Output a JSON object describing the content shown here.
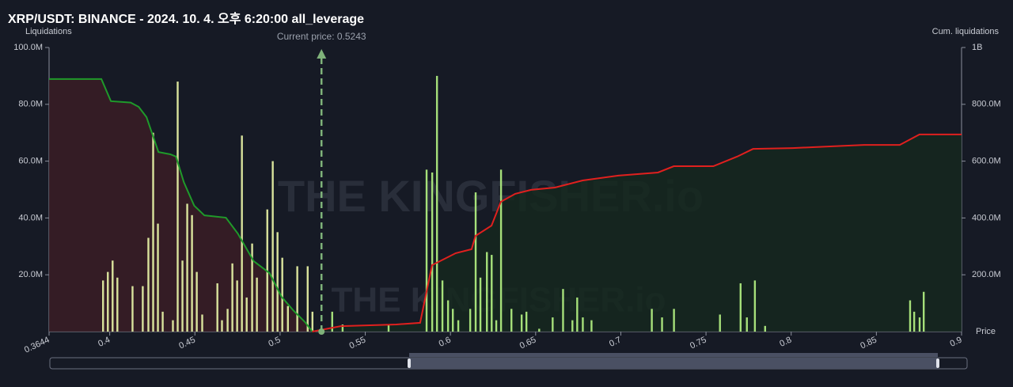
{
  "chart_data": {
    "type": "bar",
    "title": "XRP/USDT: BINANCE - 2024. 10. 4. 오후 6:20:00 all_leverage",
    "y_label": "Liquidations",
    "y2_label": "Cum. liquidations",
    "x_label": "Price",
    "watermark": "THE KINGFISHER.io",
    "current_price": {
      "value": 0.5243,
      "label": "Current price: 0.5243"
    },
    "xlim": [
      0.3644,
      0.9
    ],
    "xticks": [
      0.3644,
      0.4,
      0.45,
      0.5,
      0.55,
      0.6,
      0.65,
      0.7,
      0.75,
      0.8,
      0.85,
      0.9
    ],
    "ylim": [
      0,
      100000000
    ],
    "yticks": [
      {
        "value": 20000000,
        "label": "20.0M"
      },
      {
        "value": 40000000,
        "label": "40.0M"
      },
      {
        "value": 60000000,
        "label": "60.0M"
      },
      {
        "value": 80000000,
        "label": "80.0M"
      },
      {
        "value": 100000000,
        "label": "100.0M"
      }
    ],
    "y2lim": [
      0,
      1000000000
    ],
    "y2ticks": [
      {
        "value": 200000000,
        "label": "200.0M"
      },
      {
        "value": 400000000,
        "label": "400.0M"
      },
      {
        "value": 600000000,
        "label": "600.0M"
      },
      {
        "value": 800000000,
        "label": "800.0M"
      },
      {
        "value": 1000000000,
        "label": "1B"
      }
    ],
    "series": [
      {
        "type": "bar",
        "color": "#d9e39c",
        "x": [
          0.396,
          0.3988,
          0.4016,
          0.4044,
          0.4133,
          0.4193,
          0.4226,
          0.4254,
          0.4282,
          0.431,
          0.437,
          0.4398,
          0.4426,
          0.4454,
          0.4482,
          0.451,
          0.4542,
          0.4631,
          0.4658,
          0.4691,
          0.4719,
          0.4747,
          0.4775,
          0.4803,
          0.4835,
          0.4863,
          0.4924,
          0.4956,
          0.4984,
          0.5012,
          0.5045,
          0.51,
          0.5161,
          0.5189
        ],
        "values": [
          18000000,
          21000000,
          25000000,
          19000000,
          16000000,
          16000000,
          33000000,
          70000000,
          38000000,
          7000000,
          4000000,
          88000000,
          25000000,
          45000000,
          41000000,
          21000000,
          6000000,
          17000000,
          4000000,
          8000000,
          24000000,
          18000000,
          69000000,
          12000000,
          31000000,
          19000000,
          43000000,
          60000000,
          35000000,
          26000000,
          9000000,
          23000000,
          23000000,
          7000000
        ]
      },
      {
        "type": "bar",
        "color": "#a6e07a",
        "x": [
          0.5305,
          0.5366,
          0.5636,
          0.5859,
          0.5892,
          0.592,
          0.5952,
          0.5985,
          0.6013,
          0.6045,
          0.6115,
          0.6147,
          0.6175,
          0.6213,
          0.6241,
          0.6268,
          0.6296,
          0.6357,
          0.6417,
          0.6445,
          0.652,
          0.6599,
          0.666,
          0.6715,
          0.6743,
          0.6776,
          0.6827,
          0.7181,
          0.7241,
          0.7311,
          0.7581,
          0.7702,
          0.7739,
          0.7786,
          0.7846,
          0.8697,
          0.8721,
          0.8753,
          0.8777
        ],
        "values": [
          7000000,
          2500000,
          2500000,
          57000000,
          56000000,
          90000000,
          18000000,
          11000000,
          8000000,
          4000000,
          8000000,
          49000000,
          19000000,
          28000000,
          27000000,
          4000000,
          57000000,
          8000000,
          6000000,
          7000000,
          1000000,
          5000000,
          15000000,
          4000000,
          12000000,
          5000000,
          4000000,
          8000000,
          5000000,
          8000000,
          6000000,
          17000000,
          5000000,
          18000000,
          2000000,
          11000000,
          7000000,
          5000000,
          14000000
        ]
      },
      {
        "type": "line",
        "axis": "y2",
        "color": "#1f9a2a",
        "fill": "#3a1d26",
        "x": [
          0.3644,
          0.3951,
          0.4007,
          0.4123,
          0.417,
          0.4216,
          0.4286,
          0.4356,
          0.4389,
          0.4435,
          0.4496,
          0.4556,
          0.4682,
          0.4752,
          0.4845,
          0.4938,
          0.5008,
          0.5077,
          0.5147,
          0.5189
        ],
        "values": [
          889000000,
          889000000,
          811000000,
          806000000,
          791000000,
          755000000,
          632000000,
          624000000,
          616000000,
          526000000,
          443000000,
          409000000,
          401000000,
          345000000,
          248000000,
          206000000,
          123000000,
          75000000,
          33000000,
          0
        ]
      },
      {
        "type": "line",
        "axis": "y2",
        "color": "#e0201e",
        "fill": "#15281f",
        "x": [
          0.5189,
          0.5356,
          0.5682,
          0.5822,
          0.5892,
          0.6031,
          0.6124,
          0.6147,
          0.6241,
          0.6296,
          0.638,
          0.6473,
          0.6613,
          0.6776,
          0.6985,
          0.7218,
          0.7311,
          0.7543,
          0.7683,
          0.7776,
          0.8009,
          0.8242,
          0.8428,
          0.8637,
          0.8753,
          0.9
        ],
        "values": [
          0,
          19000000,
          25000000,
          31000000,
          234000000,
          276000000,
          290000000,
          337000000,
          373000000,
          457000000,
          485000000,
          499000000,
          507000000,
          532000000,
          549000000,
          560000000,
          582000000,
          582000000,
          616000000,
          643000000,
          646000000,
          652000000,
          657000000,
          657000000,
          694000000,
          694000000
        ]
      }
    ]
  }
}
